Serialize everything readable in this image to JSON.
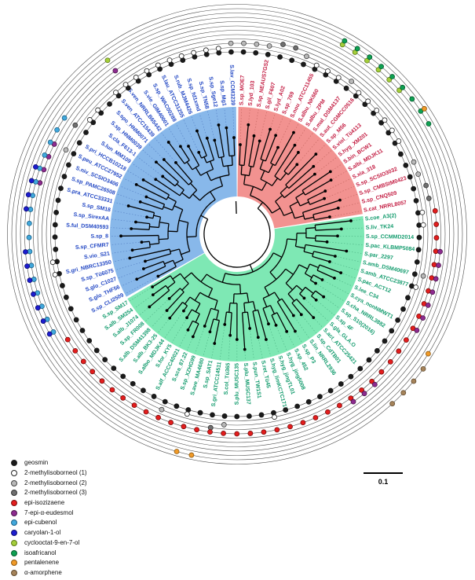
{
  "figure": {
    "type": "circular-phylogenetic-tree",
    "scale_bar": {
      "label": "0.1"
    },
    "rings": {
      "count": 12,
      "order": "innermost-to-outermost follows legend order"
    },
    "compounds": [
      {
        "name": "geosmin",
        "color": "#1a1a1a",
        "outline": "#1a1a1a"
      },
      {
        "name": "2-methylisoborneol (1)",
        "color": "#ffffff",
        "outline": "#222222"
      },
      {
        "name": "2-methylisoborneol (2)",
        "color": "#b9b9b9",
        "outline": "#444444"
      },
      {
        "name": "2-methylisoborneol (3)",
        "color": "#6f6f6f",
        "outline": "#333333"
      },
      {
        "name": "epi-isozizaene",
        "color": "#e31d1d",
        "outline": "#7a0f0f"
      },
      {
        "name": "7-epi-α-eudesmol",
        "color": "#8d2b8f",
        "outline": "#4d174e"
      },
      {
        "name": "epi-cubenol",
        "color": "#41a8dc",
        "outline": "#1d6186"
      },
      {
        "name": "caryolan-1-ol",
        "color": "#1c1ccf",
        "outline": "#101070"
      },
      {
        "name": "cyclooctat-9-en-7-ol",
        "color": "#a4ce3a",
        "outline": "#5d7a1a"
      },
      {
        "name": "isoafricanol",
        "color": "#0ea052",
        "outline": "#065c2e"
      },
      {
        "name": "pentalenene",
        "color": "#f09a28",
        "outline": "#8f5a12"
      },
      {
        "name": "α-amorphene",
        "color": "#a5835a",
        "outline": "#614a2e"
      }
    ],
    "clades": [
      {
        "id": "clade-red",
        "wedge_color": "#F29290",
        "label_color": "#C42045",
        "dash_color": "#c96b66",
        "taxa": [
          {
            "label": "S.sp_MOE7",
            "c": [
              0,
              2
            ]
          },
          {
            "label": "S.lyd_103",
            "c": [
              0,
              2
            ]
          },
          {
            "label": "S.sp_NEAUS7GS2",
            "c": [
              0,
              2
            ]
          },
          {
            "label": "S.gil_F607",
            "c": [
              0,
              3
            ]
          },
          {
            "label": "S.lyd_A02",
            "c": [
              0,
              3
            ]
          },
          {
            "label": "S.sp_769",
            "c": [
              0,
              2
            ]
          },
          {
            "label": "S.nou_ATCC11455",
            "c": [
              0,
              1
            ]
          },
          {
            "label": "S.albu_NK660",
            "c": [
              0,
              1,
              8,
              9
            ]
          },
          {
            "label": "S.albu_ZPM",
            "c": [
              0,
              1,
              8,
              9
            ]
          },
          {
            "label": "S.mal_DSM4137",
            "c": [
              0,
              2,
              8,
              9
            ]
          },
          {
            "label": "S.aut_CGMCC0516",
            "c": [
              0,
              1,
              8,
              9
            ]
          },
          {
            "label": "S.sp_M56",
            "c": [
              0,
              1,
              8,
              9
            ]
          },
          {
            "label": "S.viol_Tü4113",
            "c": [
              0,
              1,
              8,
              9
            ]
          },
          {
            "label": "S.hyg_XM201",
            "c": [
              0,
              1,
              9
            ]
          },
          {
            "label": "S.bin_BCW1",
            "c": [
              0,
              1,
              9,
              10
            ]
          },
          {
            "label": "S.albi_MDJK11",
            "c": [
              0,
              1,
              9
            ]
          },
          {
            "label": "S.xia_318",
            "c": [
              0
            ]
          },
          {
            "label": "S.sp_SCSIO3032",
            "c": [
              0,
              2
            ]
          },
          {
            "label": "S.sp_CMBStM0423",
            "c": [
              0,
              2
            ]
          },
          {
            "label": "S.sp_CNQ509",
            "c": [
              0,
              3
            ]
          },
          {
            "label": "S.cat_NRRL8057",
            "c": [
              0,
              3
            ]
          }
        ]
      },
      {
        "id": "clade-green",
        "wedge_color": "#7EE8B4",
        "label_color": "#149C6E",
        "dash_color": "#52b98a",
        "taxa": [
          {
            "label": "S.coe_A3(2)",
            "c": [
              0,
              1,
              4
            ]
          },
          {
            "label": "S.liv_TK24",
            "c": [
              0,
              1,
              4
            ]
          },
          {
            "label": "S.sp_CCMMD2014",
            "c": [
              0,
              4
            ]
          },
          {
            "label": "S.pac_KLBMP5084",
            "c": [
              0,
              4,
              5
            ]
          },
          {
            "label": "S.par_2297",
            "c": [
              0,
              4,
              5
            ]
          },
          {
            "label": "S.amb_DSM40697",
            "c": [
              0,
              2,
              4,
              5
            ]
          },
          {
            "label": "S.amb_ATCC23877",
            "c": [
              0,
              1,
              4,
              5
            ]
          },
          {
            "label": "S.pac_ACT12",
            "c": [
              0,
              4,
              5
            ]
          },
          {
            "label": "S.lee_C34",
            "c": [
              0,
              4,
              5
            ]
          },
          {
            "label": "S.cya_nonNMWT1",
            "c": [
              0,
              4,
              5
            ]
          },
          {
            "label": "S.cha_NRRL3882",
            "c": [
              0,
              4,
              10
            ]
          },
          {
            "label": "S.sp_S10(2016)",
            "c": [
              0,
              4,
              11
            ]
          },
          {
            "label": "S.sp_4F",
            "c": [
              0,
              4,
              11
            ]
          },
          {
            "label": "S.gla_GLA.O",
            "c": [
              0,
              4,
              11
            ]
          },
          {
            "label": "S.act_ATCC25421",
            "c": [
              0,
              4,
              5,
              11
            ]
          },
          {
            "label": "S.sp_CdTB01",
            "c": [
              0,
              4,
              5
            ]
          },
          {
            "label": "S.lin_NRRL2936",
            "c": [
              0,
              4,
              5
            ]
          },
          {
            "label": "S.sp_P3",
            "c": [
              0,
              4
            ]
          },
          {
            "label": "S.sp_452",
            "c": [
              0,
              4
            ]
          },
          {
            "label": "S.hyg_jing5008",
            "c": [
              0,
              4
            ]
          },
          {
            "label": "S.hyg_jingTL01",
            "c": [
              0,
              4
            ]
          },
          {
            "label": "S.hyg_limKCTC1717",
            "c": [
              0,
              4
            ]
          },
          {
            "label": "S.ret_Tü45",
            "c": [
              0,
              1,
              4
            ]
          },
          {
            "label": "S.pun_TW1S1",
            "c": [
              0,
              4
            ]
          },
          {
            "label": "S.plu_MUSC137",
            "c": [
              0,
              4
            ]
          },
          {
            "label": "S.plu_MUSC135",
            "c": [
              0,
              4
            ]
          },
          {
            "label": "S.col_Tü365",
            "c": [
              0,
              2,
              4
            ]
          },
          {
            "label": "S.gri_ATCC14511",
            "c": [
              0,
              3,
              4
            ]
          },
          {
            "label": "S.sp_SAT1",
            "c": [
              0,
              4,
              10
            ]
          },
          {
            "label": "S.ave_MA4680",
            "c": [
              0,
              1,
              4,
              10
            ]
          },
          {
            "label": "S.sp_XZHG99",
            "c": [
              0,
              4
            ]
          },
          {
            "label": "S.sca_87.22",
            "c": [
              0,
              2,
              4
            ]
          },
          {
            "label": "S.alf_ACCC40021",
            "c": [
              0,
              4
            ]
          },
          {
            "label": "S.for_KY5",
            "c": [
              0,
              4
            ]
          },
          {
            "label": "S.albo_MDJK44",
            "c": [
              0,
              4
            ]
          },
          {
            "label": "S.alb_BK3-25",
            "c": [
              0,
              4
            ]
          },
          {
            "label": "S.alb_DSM41398",
            "c": [
              0,
              4
            ]
          },
          {
            "label": "S.sp_FR008",
            "c": [
              0,
              4
            ]
          },
          {
            "label": "S.alb_J1074",
            "c": [
              0,
              4
            ]
          },
          {
            "label": "S.alb_SM254",
            "c": [
              0,
              4
            ]
          },
          {
            "label": "S.sp_SM17",
            "c": [
              0,
              4
            ]
          }
        ]
      },
      {
        "id": "clade-blue",
        "wedge_color": "#88B8EA",
        "label_color": "#2348C4",
        "dash_color": "#5b86c9",
        "taxa": [
          {
            "label": "S.sp_CLI2509",
            "c": [
              0,
              6,
              7
            ]
          },
          {
            "label": "S.glo_THF56",
            "c": [
              0,
              6,
              7
            ]
          },
          {
            "label": "S.glo_C1027",
            "c": [
              0,
              6,
              7
            ]
          },
          {
            "label": "S.sp_Tü6075",
            "c": [
              0,
              6,
              7
            ]
          },
          {
            "label": "S.gri_NBRC13350",
            "c": [
              0,
              1,
              6,
              7
            ]
          },
          {
            "label": "S.vio_S21",
            "c": [
              0,
              1,
              6,
              7
            ]
          },
          {
            "label": "S.sp_CFMR7",
            "c": [
              0,
              6,
              7
            ]
          },
          {
            "label": "S.sp_8",
            "c": [
              0,
              6
            ]
          },
          {
            "label": "S.ful_DSM40593",
            "c": [
              0,
              6
            ]
          },
          {
            "label": "S.sp_SirexAA",
            "c": [
              0,
              6,
              7
            ]
          },
          {
            "label": "S.sp_SM18",
            "c": [
              0,
              6,
              7
            ]
          },
          {
            "label": "S.pra_ATCC33331",
            "c": [
              0,
              5,
              6,
              7
            ]
          },
          {
            "label": "S.sp_PAMC26508",
            "c": [
              0,
              5,
              6,
              7
            ]
          },
          {
            "label": "S.niv_SCSIO3406",
            "c": [
              0,
              5,
              6
            ]
          },
          {
            "label": "S.peu_ATCC27952",
            "c": [
              0,
              2,
              5,
              6
            ]
          },
          {
            "label": "S.pri_HCCB10218",
            "c": [
              0,
              6
            ]
          },
          {
            "label": "S.lun_MM109",
            "c": [
              0,
              3,
              6
            ]
          },
          {
            "label": "S.cla_F613-1",
            "c": [
              0,
              1
            ]
          },
          {
            "label": "S.sp_HNM0039",
            "c": [
              0,
              1
            ]
          },
          {
            "label": "S.spo_HNM0071",
            "c": [
              0
            ]
          },
          {
            "label": "S.ven_ATCC15439",
            "c": [
              0,
              1
            ]
          },
          {
            "label": "S.ven_NRRLB65442",
            "c": [
              0,
              1,
              5,
              8
            ]
          },
          {
            "label": "S.vie_GIM40001",
            "c": [
              0,
              1
            ]
          },
          {
            "label": "S.sp_WAC00288",
            "c": [
              0,
              1
            ]
          },
          {
            "label": "S.lau_ATCC31255",
            "c": [
              0,
              1
            ]
          },
          {
            "label": "S.rub_MJM4426",
            "c": [
              0,
              1
            ]
          },
          {
            "label": "S.sp_fd1xmd",
            "c": [
              0,
              1
            ]
          },
          {
            "label": "S.sp_TN58",
            "c": [
              0,
              1
            ]
          },
          {
            "label": "S.sp_Sge12",
            "c": [
              0,
              1
            ]
          },
          {
            "label": "S.sp_Mg1",
            "c": [
              0,
              1
            ]
          },
          {
            "label": "S.lav_CCM3239",
            "c": [
              0,
              2
            ]
          }
        ]
      }
    ]
  }
}
